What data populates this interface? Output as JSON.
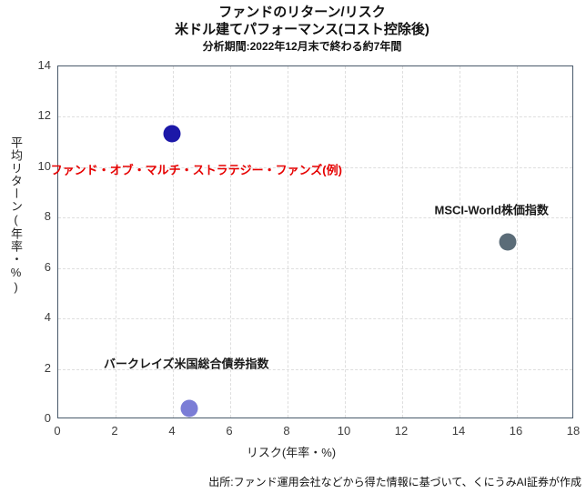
{
  "chart_data": {
    "type": "scatter",
    "title": "ファンドのリターン/リスク",
    "subtitle": "米ドル建てパフォーマンス(コスト控除後)",
    "analysis_period": "分析期間:2022年12月末で終わる約7年間",
    "xlabel": "リスク(年率・%)",
    "ylabel": "平均リターン(年率・%)",
    "xlim": [
      0,
      18
    ],
    "ylim": [
      0,
      14
    ],
    "xticks": [
      0,
      2,
      4,
      6,
      8,
      10,
      12,
      14,
      16,
      18
    ],
    "yticks": [
      0,
      2,
      4,
      6,
      8,
      10,
      12,
      14
    ],
    "grid": "dashed",
    "legend_position": "none",
    "points": [
      {
        "name": "ファンド・オブ・マルチ・ストラテジー・ファンズ(例)",
        "x": 4.0,
        "y": 11.3,
        "marker_color": "#1c18a8",
        "label_color": "#e60000",
        "label_x": 4.85,
        "label_y": 9.9
      },
      {
        "name": "MSCI-World株価指数",
        "x": 15.7,
        "y": 7.0,
        "marker_color": "#5b6c78",
        "label_color": "#1a1a1a",
        "label_x": 15.15,
        "label_y": 8.3
      },
      {
        "name": "バークレイズ米国総合債券指数",
        "x": 4.6,
        "y": 0.4,
        "marker_color": "#7b7dd6",
        "label_color": "#1a1a1a",
        "label_x": 4.5,
        "label_y": 2.2
      }
    ],
    "source": "出所:ファンド運用会社などから得た情報に基づいて、くにうみAI証券が作成",
    "colors": {
      "axis_border": "#48596a",
      "gridline": "#dedede",
      "tick_text": "#3d3d3d"
    }
  }
}
